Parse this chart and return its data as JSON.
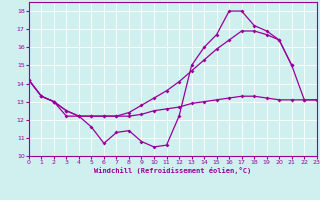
{
  "xlabel": "Windchill (Refroidissement éolien,°C)",
  "background_color": "#cff0ef",
  "line_color": "#990099",
  "xlim": [
    0,
    23
  ],
  "ylim": [
    10,
    18.5
  ],
  "yticks": [
    10,
    11,
    12,
    13,
    14,
    15,
    16,
    17,
    18
  ],
  "xticks": [
    0,
    1,
    2,
    3,
    4,
    5,
    6,
    7,
    8,
    9,
    10,
    11,
    12,
    13,
    14,
    15,
    16,
    17,
    18,
    19,
    20,
    21,
    22,
    23
  ],
  "curve_v_x": [
    0,
    1,
    2,
    3,
    4,
    5,
    6,
    7,
    8,
    9,
    10,
    11,
    12,
    13,
    14,
    15,
    16,
    17,
    18,
    19,
    20,
    21
  ],
  "curve_v_y": [
    14.2,
    13.3,
    13.0,
    12.2,
    12.2,
    11.6,
    10.7,
    11.3,
    11.4,
    10.8,
    10.5,
    10.6,
    12.2,
    15.0,
    16.0,
    16.7,
    18.0,
    18.0,
    17.2,
    16.9,
    16.4,
    15.0
  ],
  "curve_flat_x": [
    0,
    1,
    2,
    3,
    4,
    5,
    6,
    7,
    8,
    9,
    10,
    11,
    12,
    13,
    14,
    15,
    16,
    17,
    18,
    19,
    20,
    21,
    22,
    23
  ],
  "curve_flat_y": [
    14.2,
    13.3,
    13.0,
    12.5,
    12.2,
    12.2,
    12.2,
    12.2,
    12.2,
    12.3,
    12.5,
    12.6,
    12.7,
    12.9,
    13.0,
    13.1,
    13.2,
    13.3,
    13.3,
    13.2,
    13.1,
    13.1,
    13.1,
    13.1
  ],
  "curve_diag_x": [
    0,
    1,
    2,
    3,
    4,
    5,
    6,
    7,
    8,
    9,
    10,
    11,
    12,
    13,
    14,
    15,
    16,
    17,
    18,
    19,
    20,
    21,
    22,
    23
  ],
  "curve_diag_y": [
    14.2,
    13.3,
    13.0,
    12.5,
    12.2,
    12.2,
    12.2,
    12.2,
    12.4,
    12.8,
    13.2,
    13.6,
    14.1,
    14.7,
    15.3,
    15.9,
    16.4,
    16.9,
    16.9,
    16.7,
    16.4,
    15.0,
    13.1,
    13.1
  ]
}
